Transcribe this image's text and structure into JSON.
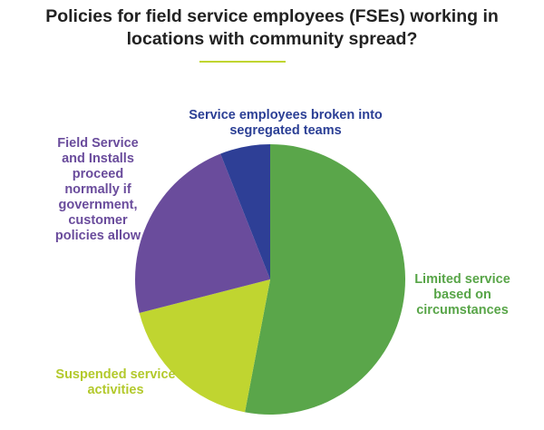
{
  "chart_data": {
    "type": "pie",
    "title": "Policies for field service employees (FSEs) working in locations with community spread?",
    "categories": [
      "Limited service based on circumstances",
      "Suspended service activities",
      "Field Service and Installs proceed normally if government, customer policies allow",
      "Service employees broken into segregated teams"
    ],
    "values": [
      53,
      18,
      23,
      6
    ],
    "colors": [
      "#5aa64a",
      "#c0d530",
      "#6a4c9c",
      "#2e3f96"
    ],
    "label_colors": [
      "#58a548",
      "#b3c92c",
      "#6a4c9c",
      "#2b3f95"
    ]
  }
}
